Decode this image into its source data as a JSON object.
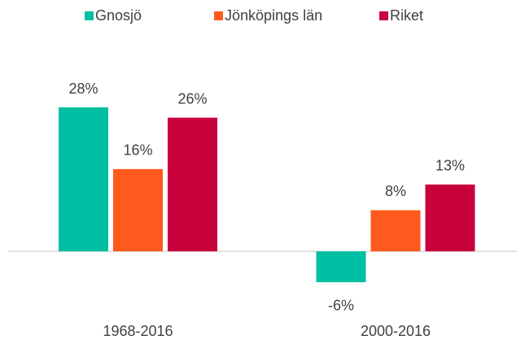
{
  "chart_data": {
    "type": "bar",
    "categories": [
      "1968-2016",
      "2000-2016"
    ],
    "series": [
      {
        "name": "Gnosjö",
        "color": "#00bfa3",
        "values": [
          28,
          -6
        ],
        "value_labels": [
          "28%",
          "-6%"
        ]
      },
      {
        "name": "Jönköpings län",
        "color": "#ff5a1e",
        "values": [
          16,
          8
        ],
        "value_labels": [
          "16%",
          "8%"
        ]
      },
      {
        "name": "Riket",
        "color": "#c8003c",
        "values": [
          26,
          13
        ],
        "value_labels": [
          "26%",
          "13%"
        ]
      }
    ]
  }
}
